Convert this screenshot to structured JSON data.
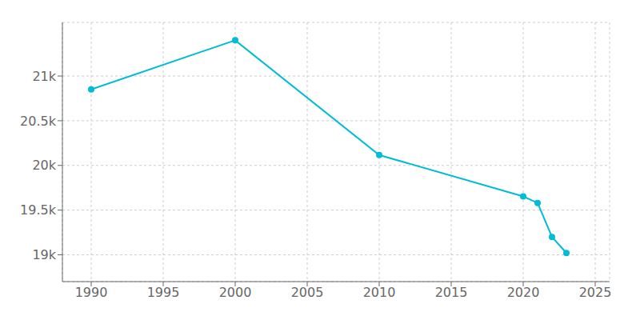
{
  "chart_data": {
    "type": "line",
    "x": [
      1990,
      2000,
      2010,
      2020,
      2021,
      2022,
      2023
    ],
    "values": [
      20850,
      21400,
      20116,
      19653,
      19580,
      19200,
      19020
    ],
    "color": "#00bcd4",
    "marker": "circle",
    "xlim": [
      1988,
      2026
    ],
    "ylim": [
      18700,
      21600
    ],
    "xticks": [
      1990,
      1995,
      2000,
      2005,
      2010,
      2015,
      2020,
      2025
    ],
    "yticks": [
      {
        "value": 19000,
        "label": "19k"
      },
      {
        "value": 19500,
        "label": "19.5k"
      },
      {
        "value": 20000,
        "label": "20k"
      },
      {
        "value": 20500,
        "label": "20.5k"
      },
      {
        "value": 21000,
        "label": "21k"
      }
    ],
    "grid": true
  }
}
